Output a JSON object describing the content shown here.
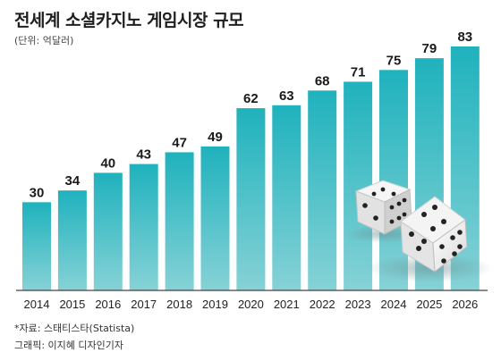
{
  "title": "전세계 소셜카지노 게임시장 규모",
  "subtitle": "(단위: 억달러)",
  "source": "*자료: 스태티스타(Statista)",
  "credit": "그래픽: 이지혜 디자인기자",
  "colors": {
    "bar_top": "#1fb2bd",
    "bar_bottom": "#86d2d6",
    "axis": "#444444"
  },
  "chart_data": {
    "type": "bar",
    "categories": [
      "2014",
      "2015",
      "2016",
      "2017",
      "2018",
      "2019",
      "2020",
      "2021",
      "2022",
      "2023",
      "2024",
      "2025",
      "2026"
    ],
    "values": [
      30,
      34,
      40,
      43,
      47,
      49,
      62,
      63,
      68,
      71,
      75,
      79,
      83
    ],
    "title": "전세계 소셜카지노 게임시장 규모",
    "ylabel": "",
    "xlabel": "",
    "ylim": [
      0,
      83
    ],
    "grid": false
  }
}
